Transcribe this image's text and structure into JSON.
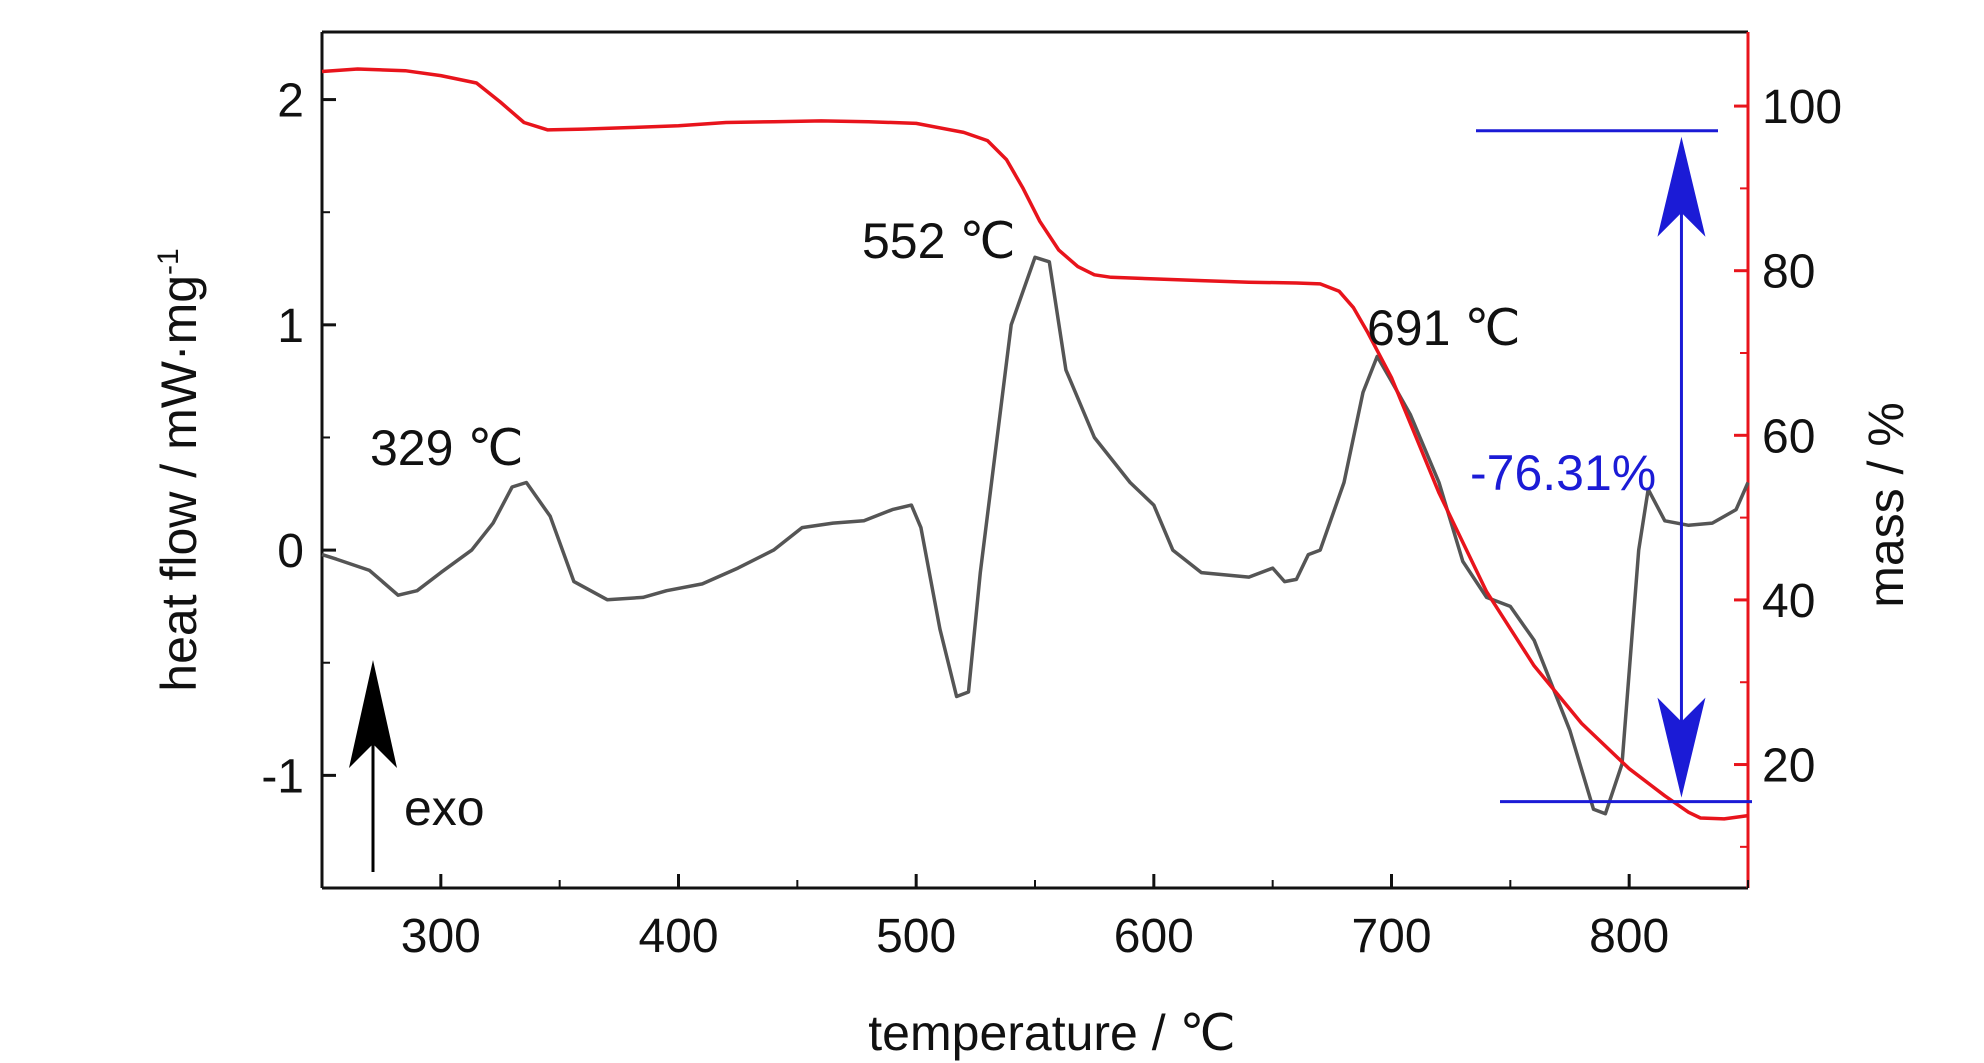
{
  "chart_data": {
    "type": "line",
    "xlabel": "temperature / ℃",
    "ylabel_left": "heat flow / mW·mg",
    "ylabel_left_superscript": "-1",
    "ylabel_right": "mass / %",
    "xlim": [
      250,
      850
    ],
    "ylim_left": [
      -1.5,
      2.3
    ],
    "ylim_right": [
      5,
      109
    ],
    "x_ticks": [
      300,
      400,
      500,
      600,
      700,
      800
    ],
    "y_left_ticks": [
      -1,
      0,
      1,
      2
    ],
    "y_right_ticks": [
      20,
      40,
      60,
      80,
      100
    ],
    "grid": false,
    "legend": "none",
    "colors": {
      "heat_flow": "#555555",
      "mass": "#e8141c",
      "annotation": "#1b1bd6",
      "axis": "#111111"
    },
    "series": [
      {
        "axis": "left",
        "x": [
          250,
          256,
          270,
          282,
          290,
          300,
          313,
          322,
          330,
          336,
          346,
          356,
          370,
          385,
          395,
          410,
          425,
          440,
          452,
          465,
          478,
          490,
          498,
          502,
          510,
          517,
          522,
          527,
          540,
          550,
          556,
          563,
          575,
          590,
          600,
          608,
          620,
          640,
          650,
          655,
          660,
          665,
          670,
          680,
          688,
          694,
          700,
          708,
          720,
          730,
          740,
          750,
          760,
          775,
          785,
          790,
          797,
          804,
          808,
          815,
          825,
          835,
          845,
          850
        ],
        "y": [
          -0.02,
          -0.04,
          -0.09,
          -0.2,
          -0.18,
          -0.1,
          0.0,
          0.12,
          0.28,
          0.3,
          0.15,
          -0.14,
          -0.22,
          -0.21,
          -0.18,
          -0.15,
          -0.08,
          0.0,
          0.1,
          0.12,
          0.13,
          0.18,
          0.2,
          0.1,
          -0.35,
          -0.65,
          -0.63,
          -0.1,
          1.0,
          1.3,
          1.28,
          0.8,
          0.5,
          0.3,
          0.2,
          0.0,
          -0.1,
          -0.12,
          -0.08,
          -0.14,
          -0.13,
          -0.02,
          0.0,
          0.3,
          0.7,
          0.86,
          0.75,
          0.6,
          0.3,
          -0.05,
          -0.21,
          -0.25,
          -0.4,
          -0.8,
          -1.15,
          -1.17,
          -0.95,
          0.0,
          0.27,
          0.13,
          0.11,
          0.12,
          0.18,
          0.3
        ]
      },
      {
        "axis": "right",
        "x": [
          250,
          265,
          285,
          300,
          315,
          325,
          335,
          345,
          360,
          380,
          400,
          420,
          440,
          460,
          480,
          500,
          520,
          530,
          538,
          545,
          552,
          560,
          568,
          575,
          582,
          600,
          620,
          640,
          660,
          670,
          678,
          684,
          690,
          700,
          710,
          720,
          740,
          760,
          780,
          800,
          815,
          825,
          830,
          840,
          850
        ],
        "y": [
          104.2,
          104.5,
          104.3,
          103.7,
          102.8,
          100.5,
          98,
          97.1,
          97.2,
          97.4,
          97.6,
          98.0,
          98.1,
          98.2,
          98.1,
          97.9,
          96.8,
          95.8,
          93.5,
          90,
          86,
          82.5,
          80.5,
          79.5,
          79.2,
          79.0,
          78.8,
          78.6,
          78.5,
          78.4,
          77.5,
          75.5,
          72.5,
          67,
          60,
          53,
          41,
          32,
          25,
          19.5,
          16.2,
          14.2,
          13.5,
          13.4,
          13.8
        ]
      }
    ],
    "annotations": {
      "peak_1": "329 ℃",
      "peak_2": "552 ℃",
      "peak_3": "691 ℃",
      "mass_loss": "-76.31%",
      "exo": "exo"
    },
    "mass_loss_lines": {
      "upper": 97.0,
      "lower": 15.5,
      "x": 822
    }
  }
}
